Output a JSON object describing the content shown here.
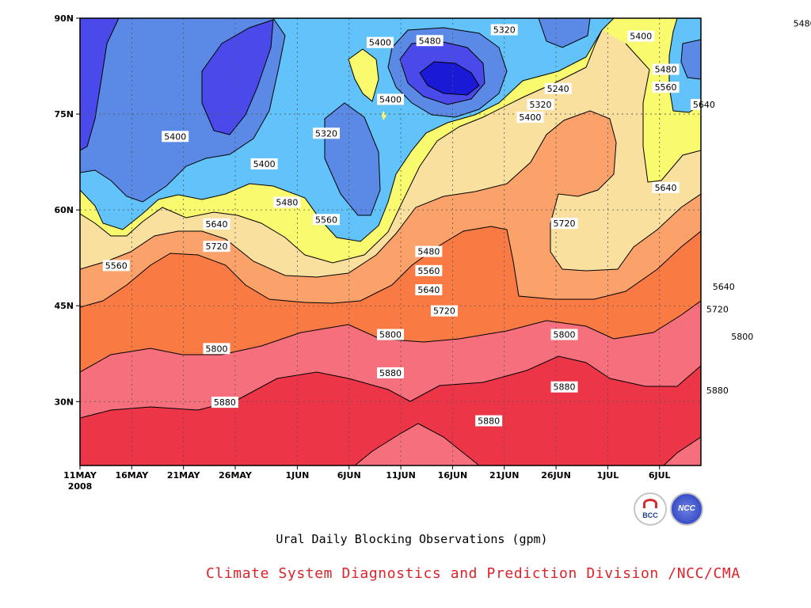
{
  "chart_data": {
    "type": "heatmap",
    "title": "",
    "xlabel": "",
    "ylabel": "",
    "x_ticks": [
      "11MAY",
      "16MAY",
      "21MAY",
      "26MAY",
      "1JUN",
      "6JUN",
      "11JUN",
      "16JUN",
      "21JUN",
      "26JUN",
      "1JUL",
      "6JUL"
    ],
    "x_year_label": "2008",
    "y_ticks": [
      "30N",
      "45N",
      "60N",
      "75N",
      "90N"
    ],
    "x_range_days": [
      0,
      60
    ],
    "y_range_lat": [
      20,
      90
    ],
    "x_tick_days": [
      0,
      5,
      10,
      15,
      21,
      26,
      31,
      36,
      41,
      46,
      51,
      56
    ],
    "y_tick_lat": [
      30,
      45,
      60,
      75,
      90
    ],
    "contour_levels": [
      5240,
      5320,
      5400,
      5480,
      5560,
      5640,
      5720,
      5800,
      5880
    ],
    "level_colors": [
      "#1a1ad6",
      "#4a4aea",
      "#5a8ae6",
      "#62c2fa",
      "#fafa6e",
      "#fae09e",
      "#faa26a",
      "#fa7a44",
      "#f5707c",
      "#ed3548"
    ],
    "grid": true,
    "contour_labels": [
      {
        "text": "5400",
        "day": 9.2,
        "lat": 71.5
      },
      {
        "text": "5400",
        "day": 17.8,
        "lat": 67.2
      },
      {
        "text": "5320",
        "day": 23.8,
        "lat": 72.0
      },
      {
        "text": "5480",
        "day": 20.0,
        "lat": 61.2
      },
      {
        "text": "5640",
        "day": 13.2,
        "lat": 57.8
      },
      {
        "text": "5560",
        "day": 23.8,
        "lat": 58.5
      },
      {
        "text": "5720",
        "day": 13.2,
        "lat": 54.3
      },
      {
        "text": "5560",
        "day": 3.5,
        "lat": 51.3
      },
      {
        "text": "5400",
        "day": 29.0,
        "lat": 86.2
      },
      {
        "text": "5480",
        "day": 33.8,
        "lat": 86.5
      },
      {
        "text": "5400",
        "day": 30.0,
        "lat": 77.3
      },
      {
        "text": "5320",
        "day": 41.0,
        "lat": 88.2
      },
      {
        "text": "5240",
        "day": 46.2,
        "lat": 79.0
      },
      {
        "text": "5320",
        "day": 44.5,
        "lat": 76.5
      },
      {
        "text": "5400",
        "day": 43.5,
        "lat": 74.5
      },
      {
        "text": "5400",
        "day": 54.2,
        "lat": 87.2
      },
      {
        "text": "5480",
        "day": 56.6,
        "lat": 82.0
      },
      {
        "text": "5560",
        "day": 56.6,
        "lat": 79.2
      },
      {
        "text": "5640",
        "day": 60.3,
        "lat": 76.5
      },
      {
        "text": "5480",
        "day": 70.0,
        "lat": 89.2
      },
      {
        "text": "5640",
        "day": 56.6,
        "lat": 63.5
      },
      {
        "text": "5720",
        "day": 46.8,
        "lat": 57.9
      },
      {
        "text": "5480",
        "day": 33.7,
        "lat": 53.5
      },
      {
        "text": "5560",
        "day": 33.7,
        "lat": 50.5
      },
      {
        "text": "5640",
        "day": 33.7,
        "lat": 47.5
      },
      {
        "text": "5720",
        "day": 35.2,
        "lat": 44.2
      },
      {
        "text": "5640",
        "day": 62.2,
        "lat": 48.0
      },
      {
        "text": "5720",
        "day": 61.6,
        "lat": 44.5
      },
      {
        "text": "5800",
        "day": 13.2,
        "lat": 38.3
      },
      {
        "text": "5800",
        "day": 30.0,
        "lat": 40.5
      },
      {
        "text": "5800",
        "day": 46.8,
        "lat": 40.5
      },
      {
        "text": "5800",
        "day": 64.0,
        "lat": 40.2
      },
      {
        "text": "5880",
        "day": 14.0,
        "lat": 29.9
      },
      {
        "text": "5880",
        "day": 30.0,
        "lat": 34.5
      },
      {
        "text": "5880",
        "day": 46.8,
        "lat": 32.3
      },
      {
        "text": "5880",
        "day": 61.6,
        "lat": 31.8
      },
      {
        "text": "5880",
        "day": 39.5,
        "lat": 27.0
      }
    ]
  },
  "caption": "Ural Daily Blocking Observations (gpm)",
  "credit": "Climate System Diagnostics and Prediction Division /NCC/CMA",
  "logos": {
    "left_text": "BCC",
    "right_text": "NCC"
  }
}
